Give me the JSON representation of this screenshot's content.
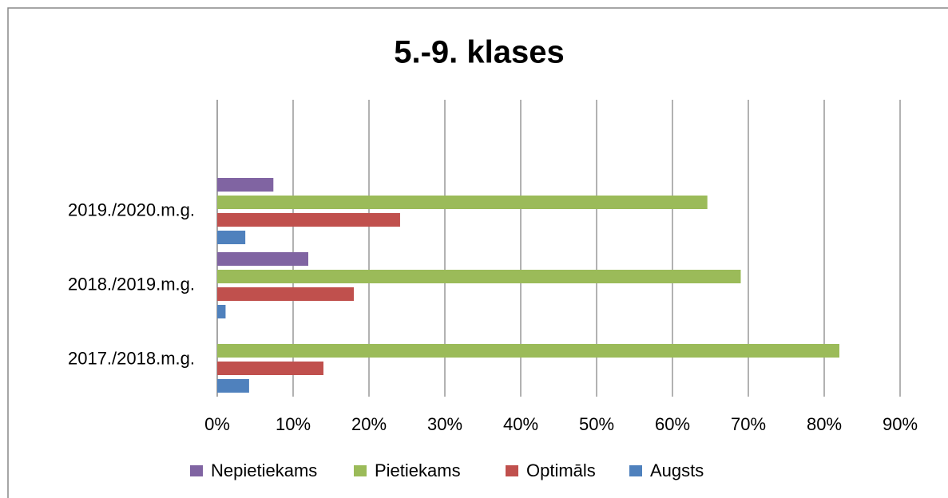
{
  "chart_data": {
    "type": "bar",
    "orientation": "horizontal",
    "title": "5.-9. klases",
    "categories": [
      "2017./2018.m.g.",
      "2018./2019.m.g.",
      "2019./2020.m.g."
    ],
    "series": [
      {
        "name": "Nepietiekams",
        "color": "#8064a2",
        "values": [
          0,
          12.0,
          7.4
        ]
      },
      {
        "name": "Pietiekams",
        "color": "#9bbb59",
        "values": [
          82.0,
          69.0,
          64.6
        ]
      },
      {
        "name": "Optimāls",
        "color": "#c0504d",
        "values": [
          14.0,
          18.0,
          24.1
        ]
      },
      {
        "name": "Augsts",
        "color": "#4f81bd",
        "values": [
          4.2,
          1.1,
          3.7
        ]
      }
    ],
    "xlim": [
      0,
      90
    ],
    "xticks": [
      {
        "value": 0,
        "label": "0%"
      },
      {
        "value": 10,
        "label": "10%"
      },
      {
        "value": 20,
        "label": "20%"
      },
      {
        "value": 30,
        "label": "30%"
      },
      {
        "value": 40,
        "label": "40%"
      },
      {
        "value": 50,
        "label": "50%"
      },
      {
        "value": 60,
        "label": "60%"
      },
      {
        "value": 70,
        "label": "70%"
      },
      {
        "value": 80,
        "label": "80%"
      },
      {
        "value": 90,
        "label": "90%"
      }
    ],
    "grid": true,
    "legend": "bottom"
  }
}
